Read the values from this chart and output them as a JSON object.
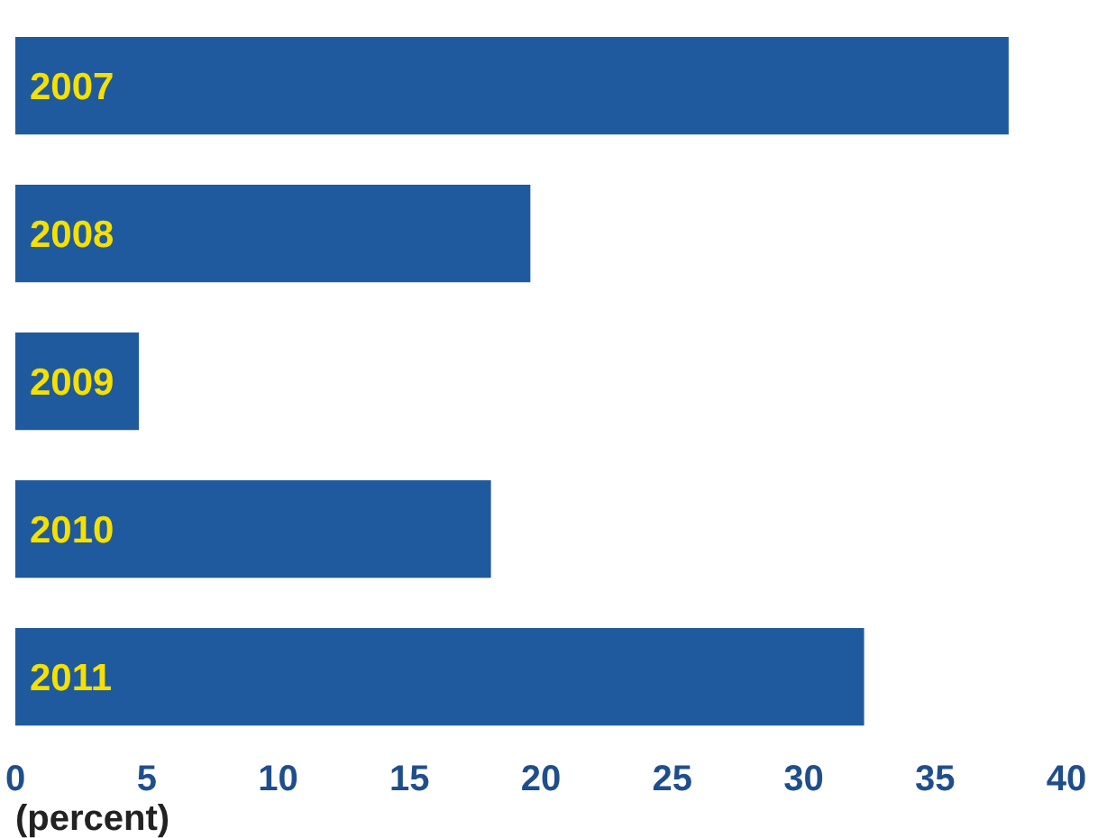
{
  "chart_data": {
    "type": "bar",
    "orientation": "horizontal",
    "categories": [
      "2007",
      "2008",
      "2009",
      "2010",
      "2011"
    ],
    "values": [
      37.8,
      19.6,
      4.7,
      18.1,
      32.3
    ],
    "color": "#1f5a9e",
    "xlim": [
      0,
      40
    ],
    "xticks": [
      0,
      5,
      10,
      15,
      20,
      25,
      30,
      35,
      40
    ],
    "xlabel": "(percent)",
    "grid": false,
    "tick_labels": "x"
  }
}
